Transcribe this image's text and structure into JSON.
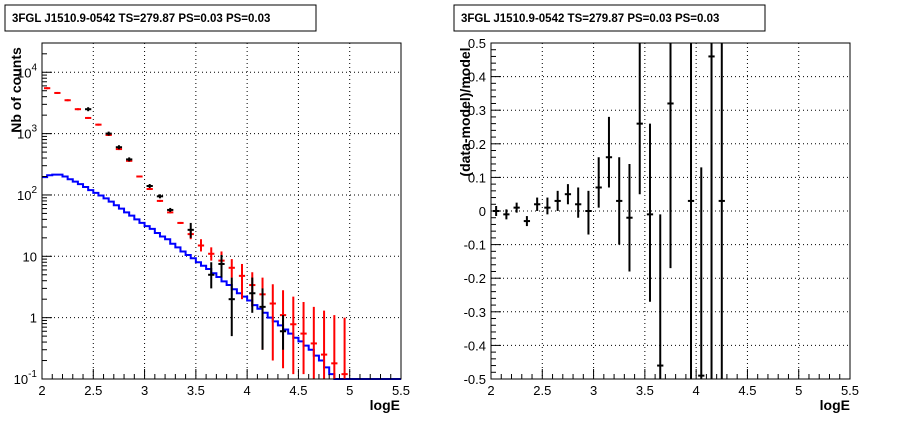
{
  "chart_data": [
    {
      "type": "scatter",
      "title": "3FGL J1510.9-0542 TS=279.87 PS=0.03 PS=0.03",
      "xlabel": "logE",
      "ylabel": "Nb of counts",
      "xlim": [
        2,
        5.5
      ],
      "ylim": [
        0.1,
        30000
      ],
      "yscale": "log",
      "grid": true,
      "x_ticks": [
        "2",
        "2.5",
        "3",
        "3.5",
        "4",
        "4.5",
        "5",
        "5.5"
      ],
      "y_ticks": [
        {
          "v": 0.1,
          "base": "10",
          "exp": "-1"
        },
        {
          "v": 1,
          "base": "1",
          "exp": ""
        },
        {
          "v": 10,
          "base": "10",
          "exp": ""
        },
        {
          "v": 100,
          "base": "10",
          "exp": "2"
        },
        {
          "v": 1000,
          "base": "10",
          "exp": "3"
        },
        {
          "v": 10000,
          "base": "10",
          "exp": "4"
        }
      ],
      "series": [
        {
          "kind": "histogram",
          "color": "#0000ff",
          "edges": [
            2.0,
            2.05,
            2.1,
            2.15,
            2.2,
            2.25,
            2.3,
            2.35,
            2.4,
            2.45,
            2.5,
            2.55,
            2.6,
            2.65,
            2.7,
            2.75,
            2.8,
            2.85,
            2.9,
            2.95,
            3.0,
            3.05,
            3.1,
            3.15,
            3.2,
            3.25,
            3.3,
            3.35,
            3.4,
            3.45,
            3.5,
            3.55,
            3.6,
            3.65,
            3.7,
            3.75,
            3.8,
            3.85,
            3.9,
            3.95,
            4.0,
            4.05,
            4.1,
            4.15,
            4.2,
            4.25,
            4.3,
            4.35,
            4.4,
            4.45,
            4.5,
            4.55,
            4.6,
            4.65,
            4.7,
            4.75,
            4.8,
            4.85,
            4.9,
            4.95,
            5.0,
            5.05,
            5.1,
            5.15,
            5.2,
            5.25,
            5.3,
            5.35,
            5.4,
            5.45,
            5.5
          ],
          "values": [
            195,
            210,
            215,
            215,
            200,
            180,
            165,
            150,
            135,
            120,
            108,
            98,
            88,
            78,
            68,
            60,
            52,
            46,
            40,
            35,
            31,
            28,
            24,
            21,
            19,
            16,
            14,
            12,
            10.5,
            9.3,
            8.0,
            7.0,
            6.2,
            5.3,
            4.6,
            3.9,
            3.4,
            2.9,
            2.5,
            2.2,
            1.9,
            1.6,
            1.4,
            1.2,
            1.0,
            0.87,
            0.75,
            0.64,
            0.55,
            0.47,
            0.41,
            0.35,
            0.3,
            0.24,
            0.2,
            0.155,
            0.12,
            0.1,
            0.1,
            0.1,
            0.1,
            0.1,
            0.1,
            0.1,
            0.1,
            0.1,
            0.1,
            0.1,
            0.1,
            0.1
          ]
        },
        {
          "kind": "errorbars",
          "color": "#ff0000",
          "x": [
            2.05,
            2.15,
            2.25,
            2.35,
            2.45,
            2.55,
            2.65,
            2.75,
            2.85,
            2.95,
            3.05,
            3.15,
            3.25,
            3.35,
            3.45,
            3.55,
            3.65,
            3.75,
            3.85,
            3.95,
            4.05,
            4.15,
            4.25,
            4.35,
            4.45,
            4.55,
            4.65,
            4.75,
            4.85,
            4.95
          ],
          "y": [
            5500,
            4600,
            3500,
            2500,
            1800,
            1400,
            950,
            560,
            360,
            200,
            125,
            80,
            52,
            35,
            23,
            15,
            11,
            8.5,
            6.5,
            4.8,
            3.4,
            2.4,
            1.7,
            1.1,
            0.78,
            0.55,
            0.38,
            0.25,
            0.18,
            0.12
          ],
          "ylow": [
            null,
            null,
            null,
            null,
            null,
            null,
            null,
            null,
            null,
            null,
            null,
            null,
            null,
            null,
            19,
            12,
            8.5,
            6,
            4.5,
            2,
            1.5,
            0.3,
            0.2,
            0.15,
            0.12,
            0.12,
            0.1,
            0.1,
            0.1,
            0.1
          ],
          "yhigh": [
            null,
            null,
            null,
            null,
            null,
            null,
            null,
            null,
            null,
            null,
            null,
            null,
            null,
            null,
            28,
            19,
            14,
            12,
            9,
            7.5,
            5.5,
            4.5,
            3.5,
            2.8,
            2.2,
            1.8,
            1.5,
            1.3,
            1.1,
            1.0
          ]
        },
        {
          "kind": "errorbars",
          "color": "#000000",
          "x": [
            2.45,
            2.65,
            2.75,
            2.85,
            3.05,
            3.15,
            3.25,
            3.45,
            3.65,
            3.75,
            3.85,
            4.05,
            4.15,
            4.35
          ],
          "y": [
            2500,
            1000,
            600,
            380,
            140,
            95,
            57,
            27,
            5,
            7.5,
            2,
            2.5,
            1.5,
            0.6
          ],
          "ylow": [
            null,
            null,
            null,
            null,
            null,
            null,
            null,
            20,
            3,
            4.5,
            0.5,
            1.2,
            0.3,
            0.3
          ],
          "yhigh": [
            null,
            null,
            null,
            null,
            null,
            null,
            null,
            35,
            8,
            10.5,
            4.5,
            4.5,
            3,
            1.1
          ]
        }
      ]
    },
    {
      "type": "scatter",
      "title": "3FGL J1510.9-0542 TS=279.87 PS=0.03 PS=0.03",
      "xlabel": "logE",
      "ylabel": "(data-model)/model",
      "xlim": [
        2,
        5.5
      ],
      "ylim": [
        -0.5,
        0.5
      ],
      "grid": true,
      "x_ticks": [
        "2",
        "2.5",
        "3",
        "3.5",
        "4",
        "4.5",
        "5",
        "5.5"
      ],
      "y_ticks": [
        "-0.5",
        "-0.4",
        "-0.3",
        "-0.2",
        "-0.1",
        "0",
        "0.1",
        "0.2",
        "0.3",
        "0.4",
        "0.5"
      ],
      "series": [
        {
          "kind": "errorbars",
          "color": "#000000",
          "x": [
            2.05,
            2.15,
            2.25,
            2.35,
            2.45,
            2.55,
            2.65,
            2.75,
            2.85,
            2.95,
            3.05,
            3.15,
            3.25,
            3.35,
            3.45,
            3.55,
            3.65,
            3.75,
            3.95,
            4.05,
            4.15,
            4.25
          ],
          "y": [
            0.0,
            -0.01,
            0.01,
            -0.03,
            0.02,
            0.01,
            0.03,
            0.05,
            0.02,
            0.0,
            0.07,
            0.16,
            0.03,
            -0.02,
            0.26,
            -0.01,
            -0.46,
            0.32,
            0.03,
            -0.49,
            0.46,
            0.03
          ],
          "ylow": [
            null,
            null,
            null,
            null,
            0.0,
            -0.01,
            0.0,
            0.02,
            -0.02,
            -0.07,
            0.01,
            0.07,
            -0.1,
            -0.18,
            0.05,
            -0.27,
            -0.82,
            -0.17,
            -0.95,
            -0.95,
            -0.5,
            -0.5
          ],
          "yhigh": [
            null,
            null,
            null,
            null,
            0.04,
            0.04,
            0.06,
            0.08,
            0.07,
            0.06,
            0.16,
            0.28,
            0.16,
            0.14,
            0.58,
            0.26,
            -0.01,
            0.82,
            0.98,
            0.13,
            0.95,
            0.98
          ]
        }
      ]
    }
  ]
}
